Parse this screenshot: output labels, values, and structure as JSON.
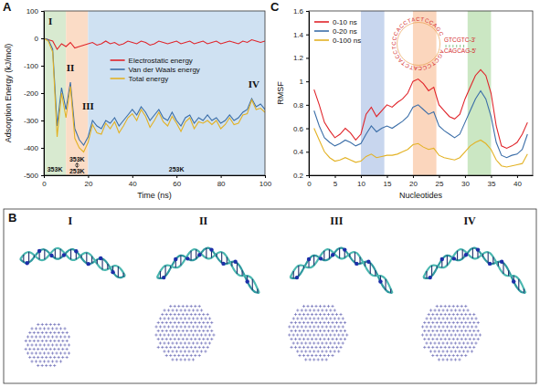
{
  "chart_data": [
    {
      "type": "line",
      "panel_label": "A",
      "xlabel": "Time (ns)",
      "ylabel": "Adsorption Energy (kJ/mol)",
      "xlim": [
        0,
        100
      ],
      "xticks": [
        0,
        20,
        40,
        60,
        80,
        100
      ],
      "ylim": [
        -500,
        100
      ],
      "yticks": [
        -500,
        -400,
        -300,
        -200,
        -100,
        0,
        100
      ],
      "legend": "top",
      "x": [
        0,
        2,
        4,
        6,
        8,
        10,
        12,
        14,
        16,
        18,
        20,
        22,
        24,
        26,
        28,
        30,
        32,
        34,
        36,
        38,
        40,
        42,
        44,
        46,
        48,
        50,
        52,
        54,
        56,
        58,
        60,
        62,
        64,
        66,
        68,
        70,
        72,
        74,
        76,
        78,
        80,
        82,
        84,
        86,
        88,
        90,
        92,
        94,
        96,
        98,
        100
      ],
      "series": [
        {
          "name": "Electrostatic energy",
          "color": "#e0242a",
          "values": [
            0,
            -5,
            -10,
            -40,
            -20,
            -30,
            -15,
            -35,
            -30,
            -25,
            -20,
            -15,
            -25,
            -20,
            -10,
            -20,
            -15,
            -25,
            -20,
            -10,
            -15,
            -20,
            -10,
            -15,
            -25,
            -20,
            -10,
            -15,
            -20,
            -15,
            -10,
            -20,
            -15,
            -10,
            -20,
            -15,
            -10,
            -20,
            -15,
            -10,
            -20,
            -15,
            -10,
            -15,
            -20,
            -10,
            -15,
            -5,
            -10,
            -15,
            -10
          ]
        },
        {
          "name": "Van der Waals energy",
          "color": "#3b6ea8",
          "values": [
            0,
            -5,
            -40,
            -320,
            -180,
            -260,
            -160,
            -330,
            -370,
            -390,
            -360,
            -300,
            -320,
            -330,
            -300,
            -310,
            -290,
            -320,
            -300,
            -280,
            -260,
            -280,
            -250,
            -270,
            -300,
            -280,
            -260,
            -290,
            -300,
            -270,
            -300,
            -320,
            -290,
            -280,
            -310,
            -290,
            -300,
            -280,
            -300,
            -290,
            -310,
            -300,
            -280,
            -300,
            -290,
            -270,
            -260,
            -220,
            -250,
            -240,
            -260
          ]
        },
        {
          "name": "Total energy",
          "color": "#e3b224",
          "values": [
            0,
            -10,
            -50,
            -360,
            -200,
            -290,
            -175,
            -365,
            -400,
            -415,
            -380,
            -315,
            -345,
            -350,
            -310,
            -330,
            -305,
            -345,
            -320,
            -290,
            -275,
            -300,
            -260,
            -285,
            -325,
            -300,
            -270,
            -305,
            -320,
            -285,
            -310,
            -340,
            -305,
            -290,
            -330,
            -305,
            -310,
            -300,
            -315,
            -300,
            -330,
            -315,
            -290,
            -315,
            -310,
            -280,
            -275,
            -225,
            -260,
            -255,
            -270
          ]
        }
      ],
      "regions": [
        {
          "x0": 0,
          "x1": 10,
          "color": "#d8ead0",
          "labels": [
            "353K"
          ]
        },
        {
          "x0": 10,
          "x1": 20,
          "color": "#fbdcc6",
          "labels": [
            "353K",
            "253K"
          ]
        },
        {
          "x0": 20,
          "x1": 100,
          "color": "#cfe1f2",
          "labels": [
            "253K"
          ]
        }
      ],
      "annotations": [
        {
          "text": "I",
          "x": 3,
          "y": 60
        },
        {
          "text": "II",
          "x": 12,
          "y": -110
        },
        {
          "text": "III",
          "x": 20,
          "y": -250
        },
        {
          "text": "IV",
          "x": 95,
          "y": -170
        }
      ]
    },
    {
      "type": "line",
      "panel_label": "C",
      "xlabel": "Nucleotides",
      "ylabel": "RMSF",
      "xlim": [
        0,
        43
      ],
      "xticks": [
        0,
        5,
        10,
        15,
        20,
        25,
        30,
        35,
        40
      ],
      "ylim": [
        0.2,
        1.6
      ],
      "yticks": [
        0.2,
        0.4,
        0.6,
        0.8,
        1.0,
        1.2,
        1.4,
        1.6
      ],
      "legend": "top-left",
      "x": [
        1,
        2,
        3,
        4,
        5,
        6,
        7,
        8,
        9,
        10,
        11,
        12,
        13,
        14,
        15,
        16,
        17,
        18,
        19,
        20,
        21,
        22,
        23,
        24,
        25,
        26,
        27,
        28,
        29,
        30,
        31,
        32,
        33,
        34,
        35,
        36,
        37,
        38,
        39,
        40,
        41,
        42
      ],
      "series": [
        {
          "name": "0-10 ns",
          "color": "#e0242a",
          "values": [
            0.93,
            0.8,
            0.65,
            0.58,
            0.52,
            0.55,
            0.6,
            0.56,
            0.5,
            0.55,
            0.72,
            0.78,
            0.7,
            0.75,
            0.8,
            0.78,
            0.82,
            0.85,
            0.9,
            1.0,
            1.02,
            0.98,
            0.92,
            0.95,
            0.8,
            0.75,
            0.7,
            0.68,
            0.72,
            0.85,
            0.95,
            1.05,
            1.1,
            1.05,
            0.9,
            0.62,
            0.45,
            0.43,
            0.45,
            0.48,
            0.55,
            0.65
          ]
        },
        {
          "name": "0-20 ns",
          "color": "#3b6ea8",
          "values": [
            0.75,
            0.62,
            0.52,
            0.48,
            0.45,
            0.47,
            0.5,
            0.48,
            0.45,
            0.47,
            0.55,
            0.62,
            0.57,
            0.6,
            0.62,
            0.6,
            0.63,
            0.66,
            0.7,
            0.78,
            0.8,
            0.76,
            0.72,
            0.74,
            0.62,
            0.58,
            0.55,
            0.52,
            0.55,
            0.65,
            0.75,
            0.85,
            0.92,
            0.85,
            0.7,
            0.48,
            0.37,
            0.35,
            0.37,
            0.38,
            0.42,
            0.55
          ]
        },
        {
          "name": "0-100 ns",
          "color": "#e3b224",
          "values": [
            0.6,
            0.5,
            0.4,
            0.35,
            0.32,
            0.33,
            0.35,
            0.33,
            0.31,
            0.32,
            0.36,
            0.38,
            0.35,
            0.36,
            0.37,
            0.37,
            0.38,
            0.4,
            0.42,
            0.46,
            0.47,
            0.44,
            0.42,
            0.43,
            0.37,
            0.35,
            0.34,
            0.33,
            0.35,
            0.4,
            0.45,
            0.48,
            0.5,
            0.47,
            0.42,
            0.33,
            0.28,
            0.27,
            0.28,
            0.29,
            0.3,
            0.38
          ]
        }
      ],
      "regions": [
        {
          "x0": 10,
          "x1": 14.5,
          "color": "#c8d6ee"
        },
        {
          "x0": 20,
          "x1": 24.5,
          "color": "#fbd6bd"
        },
        {
          "x0": 30.5,
          "x1": 35,
          "color": "#cbe7c3"
        }
      ],
      "inset": {
        "loop": "AGCTCCCATCTACCTCCCACCTACTCCAGC",
        "stem_top": "GTCGTC-3'",
        "stem_bottom": "CAGCAG-5'"
      }
    }
  ],
  "panel_b": {
    "panel_label": "B",
    "snapshots": [
      "I",
      "II",
      "III",
      "IV"
    ]
  }
}
